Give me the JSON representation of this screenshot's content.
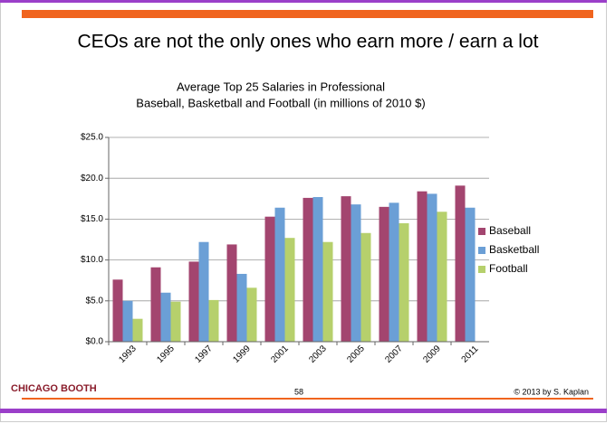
{
  "slide": {
    "title": "CEOs are not the only ones who earn more / earn a lot",
    "logo": "CHICAGO BOOTH",
    "page_number": "58",
    "copyright": "© 2013 by S. Kaplan"
  },
  "chart_data": {
    "type": "bar",
    "title": [
      "Average Top 25 Salaries in Professional",
      "Baseball, Basketball and Football (in millions of 2010 $)"
    ],
    "categories": [
      "1993",
      "1995",
      "1997",
      "1999",
      "2001",
      "2003",
      "2005",
      "2007",
      "2009",
      "2011"
    ],
    "series": [
      {
        "name": "Baseball",
        "color": "#a3456f",
        "values": [
          7.6,
          9.1,
          9.8,
          11.9,
          15.3,
          17.6,
          17.8,
          16.5,
          18.4,
          19.1
        ]
      },
      {
        "name": "Basketball",
        "color": "#6b9fd6",
        "values": [
          5.0,
          6.0,
          12.2,
          8.3,
          16.4,
          17.7,
          16.8,
          17.0,
          18.1,
          16.4
        ]
      },
      {
        "name": "Football",
        "color": "#b6d06c",
        "values": [
          2.8,
          4.9,
          5.1,
          6.6,
          12.7,
          12.2,
          13.3,
          14.5,
          15.9,
          null
        ]
      }
    ],
    "ylim": [
      0,
      25
    ],
    "yticks": [
      {
        "value": 0,
        "label": "$0.0"
      },
      {
        "value": 5,
        "label": "$5.0"
      },
      {
        "value": 10,
        "label": "$10.0"
      },
      {
        "value": 15,
        "label": "$15.0"
      },
      {
        "value": 20,
        "label": "$20.0"
      },
      {
        "value": 25,
        "label": "$25.0"
      }
    ],
    "grid": true,
    "legend": "right"
  }
}
